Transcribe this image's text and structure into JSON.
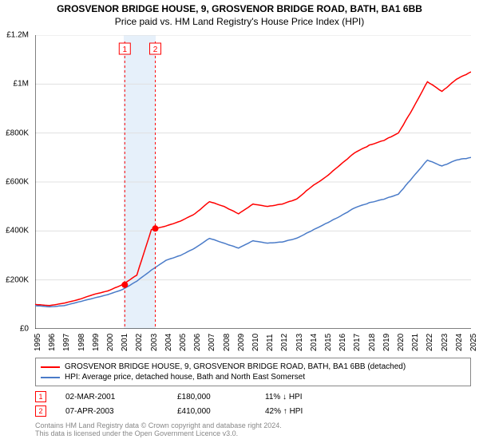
{
  "title_line1": "GROSVENOR BRIDGE HOUSE, 9, GROSVENOR BRIDGE ROAD, BATH, BA1 6BB",
  "title_line2": "Price paid vs. HM Land Registry's House Price Index (HPI)",
  "chart": {
    "type": "line",
    "xlim": [
      1995,
      2025
    ],
    "ylim": [
      0,
      1200000
    ],
    "ytick_step": 200000,
    "ytick_labels": [
      "£0",
      "£200K",
      "£400K",
      "£600K",
      "£800K",
      "£1M",
      "£1.2M"
    ],
    "xtick_step": 1,
    "xtick_labels": [
      "1995",
      "1996",
      "1997",
      "1998",
      "1999",
      "2000",
      "2001",
      "2002",
      "2003",
      "2004",
      "2005",
      "2006",
      "2007",
      "2008",
      "2009",
      "2010",
      "2011",
      "2012",
      "2013",
      "2014",
      "2015",
      "2016",
      "2017",
      "2018",
      "2019",
      "2020",
      "2021",
      "2022",
      "2023",
      "2024",
      "2025"
    ],
    "background_color": "#ffffff",
    "grid_color": "#e0e0e0",
    "axis_color": "#000000",
    "highlight_band": {
      "x_start": 2001.1,
      "x_end": 2003.3,
      "color": "#e6f0fa"
    },
    "series": [
      {
        "name": "property",
        "color": "#ff0000",
        "line_width": 1.5,
        "data": [
          [
            1995,
            100000
          ],
          [
            1996,
            95000
          ],
          [
            1997,
            105000
          ],
          [
            1998,
            120000
          ],
          [
            1999,
            140000
          ],
          [
            2000,
            155000
          ],
          [
            2001,
            180000
          ],
          [
            2002,
            220000
          ],
          [
            2003,
            405000
          ],
          [
            2004,
            420000
          ],
          [
            2005,
            440000
          ],
          [
            2006,
            470000
          ],
          [
            2007,
            520000
          ],
          [
            2008,
            500000
          ],
          [
            2009,
            470000
          ],
          [
            2010,
            510000
          ],
          [
            2011,
            500000
          ],
          [
            2012,
            510000
          ],
          [
            2013,
            530000
          ],
          [
            2014,
            580000
          ],
          [
            2015,
            620000
          ],
          [
            2016,
            670000
          ],
          [
            2017,
            720000
          ],
          [
            2018,
            750000
          ],
          [
            2019,
            770000
          ],
          [
            2020,
            800000
          ],
          [
            2021,
            900000
          ],
          [
            2022,
            1010000
          ],
          [
            2023,
            970000
          ],
          [
            2024,
            1020000
          ],
          [
            2025,
            1050000
          ]
        ]
      },
      {
        "name": "hpi",
        "color": "#4a7bc8",
        "line_width": 1.5,
        "data": [
          [
            1995,
            95000
          ],
          [
            1996,
            90000
          ],
          [
            1997,
            95000
          ],
          [
            1998,
            110000
          ],
          [
            1999,
            125000
          ],
          [
            2000,
            140000
          ],
          [
            2001,
            160000
          ],
          [
            2002,
            195000
          ],
          [
            2003,
            240000
          ],
          [
            2004,
            280000
          ],
          [
            2005,
            300000
          ],
          [
            2006,
            330000
          ],
          [
            2007,
            370000
          ],
          [
            2008,
            350000
          ],
          [
            2009,
            330000
          ],
          [
            2010,
            360000
          ],
          [
            2011,
            350000
          ],
          [
            2012,
            355000
          ],
          [
            2013,
            370000
          ],
          [
            2014,
            400000
          ],
          [
            2015,
            430000
          ],
          [
            2016,
            460000
          ],
          [
            2017,
            495000
          ],
          [
            2018,
            515000
          ],
          [
            2019,
            530000
          ],
          [
            2020,
            550000
          ],
          [
            2021,
            620000
          ],
          [
            2022,
            690000
          ],
          [
            2023,
            665000
          ],
          [
            2024,
            690000
          ],
          [
            2025,
            700000
          ]
        ]
      }
    ],
    "markers": [
      {
        "num": "1",
        "x": 2001.17,
        "y": 180000,
        "color": "#ff0000"
      },
      {
        "num": "2",
        "x": 2003.27,
        "y": 410000,
        "color": "#ff0000"
      }
    ]
  },
  "legend": {
    "items": [
      {
        "color": "#ff0000",
        "label": "GROSVENOR BRIDGE HOUSE, 9, GROSVENOR BRIDGE ROAD, BATH, BA1 6BB (detached)"
      },
      {
        "color": "#4a7bc8",
        "label": "HPI: Average price, detached house, Bath and North East Somerset"
      }
    ]
  },
  "marker_table": [
    {
      "num": "1",
      "date": "02-MAR-2001",
      "price": "£180,000",
      "pct": "11% ↓ HPI"
    },
    {
      "num": "2",
      "date": "07-APR-2003",
      "price": "£410,000",
      "pct": "42% ↑ HPI"
    }
  ],
  "footer_line1": "Contains HM Land Registry data © Crown copyright and database right 2024.",
  "footer_line2": "This data is licensed under the Open Government Licence v3.0."
}
